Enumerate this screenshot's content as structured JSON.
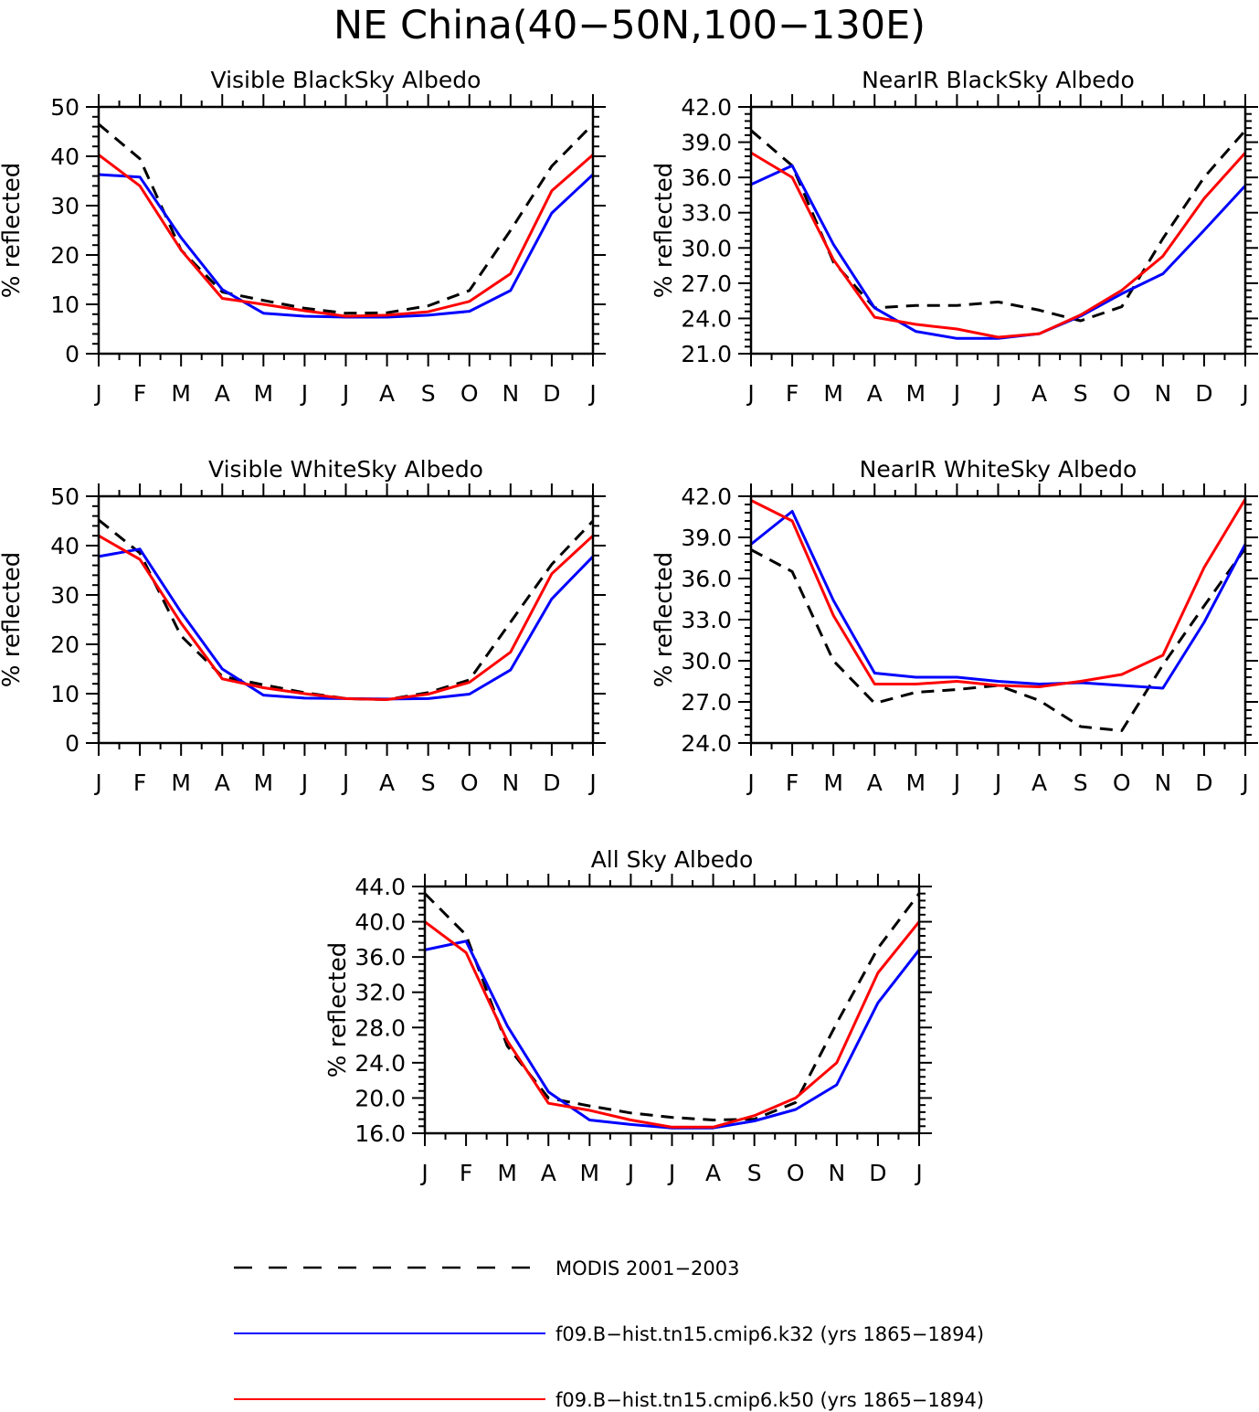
{
  "title": "NE China(40−50N,100−130E)",
  "colors": {
    "modis": "#000000",
    "k32": "#0000ff",
    "k50": "#ff0000"
  },
  "legend": [
    {
      "key": "modis",
      "label": "MODIS 2001−2003",
      "color": "#000000",
      "dash": true
    },
    {
      "key": "k32",
      "label": "f09.B−hist.tn15.cmip6.k32 (yrs 1865−1894)",
      "color": "#0000ff",
      "dash": false
    },
    {
      "key": "k50",
      "label": "f09.B−hist.tn15.cmip6.k50 (yrs 1865−1894)",
      "color": "#ff0000",
      "dash": false
    }
  ],
  "chart_data": [
    {
      "type": "line",
      "title": "Visible BlackSky Albedo",
      "ylabel": "% reflected",
      "categories": [
        "J",
        "F",
        "M",
        "A",
        "M",
        "J",
        "J",
        "A",
        "S",
        "O",
        "N",
        "D",
        "J"
      ],
      "ylim": [
        0,
        50
      ],
      "yticks": [
        0,
        10,
        20,
        30,
        40,
        50
      ],
      "ytick_labels": [
        "0",
        "10",
        "20",
        "30",
        "40",
        "50"
      ],
      "series": [
        {
          "key": "modis",
          "values": [
            46.5,
            39.5,
            21,
            12.5,
            10.8,
            9.2,
            8.2,
            8.3,
            9.7,
            12.8,
            25,
            38,
            46.5
          ]
        },
        {
          "key": "k32",
          "values": [
            36.3,
            35.8,
            23.5,
            13,
            8.2,
            7.6,
            7.4,
            7.4,
            7.8,
            8.6,
            12.8,
            28.5,
            36.3
          ]
        },
        {
          "key": "k50",
          "values": [
            40.3,
            34,
            21,
            11.2,
            10,
            8.7,
            7.6,
            7.8,
            8.5,
            10.6,
            16.2,
            33,
            40.3
          ]
        }
      ]
    },
    {
      "type": "line",
      "title": "NearIR BlackSky Albedo",
      "ylabel": "% reflected",
      "categories": [
        "J",
        "F",
        "M",
        "A",
        "M",
        "J",
        "J",
        "A",
        "S",
        "O",
        "N",
        "D",
        "J"
      ],
      "ylim": [
        21,
        42
      ],
      "yticks": [
        21,
        24,
        27,
        30,
        33,
        36,
        39,
        42
      ],
      "ytick_labels": [
        "21.0",
        "24.0",
        "27.0",
        "30.0",
        "33.0",
        "36.0",
        "39.0",
        "42.0"
      ],
      "series": [
        {
          "key": "modis",
          "values": [
            40,
            37,
            28.8,
            24.9,
            25.1,
            25.1,
            25.4,
            24.7,
            23.8,
            25,
            30.8,
            36,
            40
          ]
        },
        {
          "key": "k32",
          "values": [
            35.4,
            37,
            30.3,
            24.9,
            22.9,
            22.3,
            22.3,
            22.7,
            24.2,
            26.1,
            27.8,
            31.5,
            35.3
          ]
        },
        {
          "key": "k50",
          "values": [
            38.1,
            36,
            29,
            24.1,
            23.5,
            23.1,
            22.4,
            22.7,
            24.3,
            26.4,
            29.3,
            34.2,
            38.1
          ]
        }
      ]
    },
    {
      "type": "line",
      "title": "Visible WhiteSky Albedo",
      "ylabel": "% reflected",
      "categories": [
        "J",
        "F",
        "M",
        "A",
        "M",
        "J",
        "J",
        "A",
        "S",
        "O",
        "N",
        "D",
        "J"
      ],
      "ylim": [
        0,
        50
      ],
      "yticks": [
        0,
        10,
        20,
        30,
        40,
        50
      ],
      "ytick_labels": [
        "0",
        "10",
        "20",
        "30",
        "40",
        "50"
      ],
      "series": [
        {
          "key": "modis",
          "values": [
            45.2,
            38.5,
            21.7,
            13.5,
            11.8,
            10.2,
            9,
            8.8,
            10.2,
            12.8,
            24.5,
            36.2,
            45
          ]
        },
        {
          "key": "k32",
          "values": [
            37.8,
            39.3,
            26.5,
            15,
            9.7,
            9.1,
            9,
            8.9,
            9,
            9.9,
            14.8,
            29.2,
            37.8
          ]
        },
        {
          "key": "k50",
          "values": [
            42,
            37.2,
            24.3,
            13,
            11.2,
            10,
            9,
            8.8,
            9.9,
            12.3,
            18.4,
            34.3,
            42
          ]
        }
      ]
    },
    {
      "type": "line",
      "title": "NearIR WhiteSky Albedo",
      "ylabel": "% reflected",
      "categories": [
        "J",
        "F",
        "M",
        "A",
        "M",
        "J",
        "J",
        "A",
        "S",
        "O",
        "N",
        "D",
        "J"
      ],
      "ylim": [
        24,
        42
      ],
      "yticks": [
        24,
        27,
        30,
        33,
        36,
        39,
        42
      ],
      "ytick_labels": [
        "24.0",
        "27.0",
        "30.0",
        "33.0",
        "36.0",
        "39.0",
        "42.0"
      ],
      "series": [
        {
          "key": "modis",
          "values": [
            38.1,
            36.5,
            30,
            26.9,
            27.7,
            27.9,
            28.2,
            27.1,
            25.2,
            24.9,
            29.7,
            34,
            38.2
          ]
        },
        {
          "key": "k32",
          "values": [
            38.5,
            40.9,
            34.4,
            29.1,
            28.8,
            28.8,
            28.5,
            28.3,
            28.4,
            28.2,
            28,
            32.8,
            38.5
          ]
        },
        {
          "key": "k50",
          "values": [
            41.7,
            40.2,
            33.3,
            28.3,
            28.3,
            28.5,
            28.2,
            28.1,
            28.5,
            29,
            30.4,
            36.8,
            41.8
          ]
        }
      ]
    },
    {
      "type": "line",
      "title": "All Sky Albedo",
      "ylabel": "% reflected",
      "categories": [
        "J",
        "F",
        "M",
        "A",
        "M",
        "J",
        "J",
        "A",
        "S",
        "O",
        "N",
        "D",
        "J"
      ],
      "ylim": [
        16,
        44
      ],
      "yticks": [
        16,
        20,
        24,
        28,
        32,
        36,
        40,
        44
      ],
      "ytick_labels": [
        "16.0",
        "20.0",
        "24.0",
        "28.0",
        "32.0",
        "36.0",
        "40.0",
        "44.0"
      ],
      "series": [
        {
          "key": "modis",
          "values": [
            43.2,
            38.5,
            25.9,
            20,
            19.1,
            18.3,
            17.8,
            17.5,
            17.6,
            19.5,
            28.5,
            37,
            43.2
          ]
        },
        {
          "key": "k32",
          "values": [
            36.8,
            37.8,
            28.2,
            20.7,
            17.5,
            17,
            16.6,
            16.6,
            17.4,
            18.7,
            21.5,
            30.8,
            36.8
          ]
        },
        {
          "key": "k50",
          "values": [
            40,
            36.5,
            26.5,
            19.4,
            18.6,
            17.5,
            16.7,
            16.7,
            18,
            20,
            24,
            34.2,
            40
          ]
        }
      ]
    }
  ]
}
